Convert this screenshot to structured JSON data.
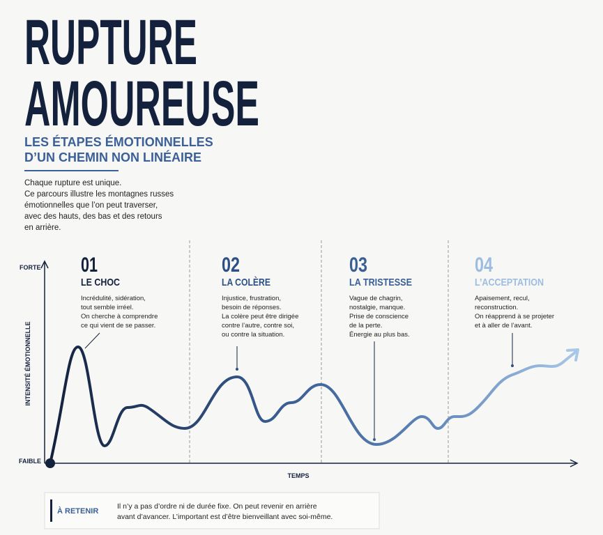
{
  "header": {
    "title_lines": [
      "RUPTURE",
      "AMOUREUSE"
    ],
    "subtitle_lines": [
      "LES ÉTAPES ÉMOTIONNELLES",
      "D’UN CHEMIN NON LINÉAIRE"
    ],
    "intro_lines": [
      "Chaque rupture est unique.",
      "Ce parcours illustre les montagnes russes",
      "émotionnelles que l’on peut traverser,",
      "avec des hauts, des bas et des retours",
      "en arrière."
    ]
  },
  "axes": {
    "y_high": "FORTE",
    "y_low": "FAIBLE",
    "y_label": "INTENSITÉ ÉMOTIONNELLE",
    "x_label": "TEMPS"
  },
  "stages": [
    {
      "number": "01",
      "title": "LE CHOC",
      "lines": [
        "Incrédulité, sidération,",
        "tout semble irréel.",
        "On cherche à comprendre",
        "ce qui vient de se passer."
      ]
    },
    {
      "number": "02",
      "title": "LA COLÈRE",
      "lines": [
        "Injustice, frustration,",
        "besoin de réponses.",
        "La colère peut être dirigée",
        "contre l’autre, contre soi,",
        "ou contre la situation."
      ]
    },
    {
      "number": "03",
      "title": "LA TRISTESSE",
      "lines": [
        "Vague de chagrin,",
        "nostalgie, manque.",
        "Prise de conscience",
        "de la perte.",
        "Énergie au plus bas."
      ]
    },
    {
      "number": "04",
      "title": "L’ACCEPTATION",
      "lines": [
        "Apaisement, recul,",
        "reconstruction.",
        "On réapprend à se projeter",
        "et à aller de l’avant."
      ]
    }
  ],
  "note": {
    "label": "À RETENIR",
    "lines": [
      "Il n’y a pas d’ordre ni de durée fixe.  On peut revenir en arrière",
      "avant d’avancer. L’important est d’être bienveillant avec soi-même."
    ]
  }
}
